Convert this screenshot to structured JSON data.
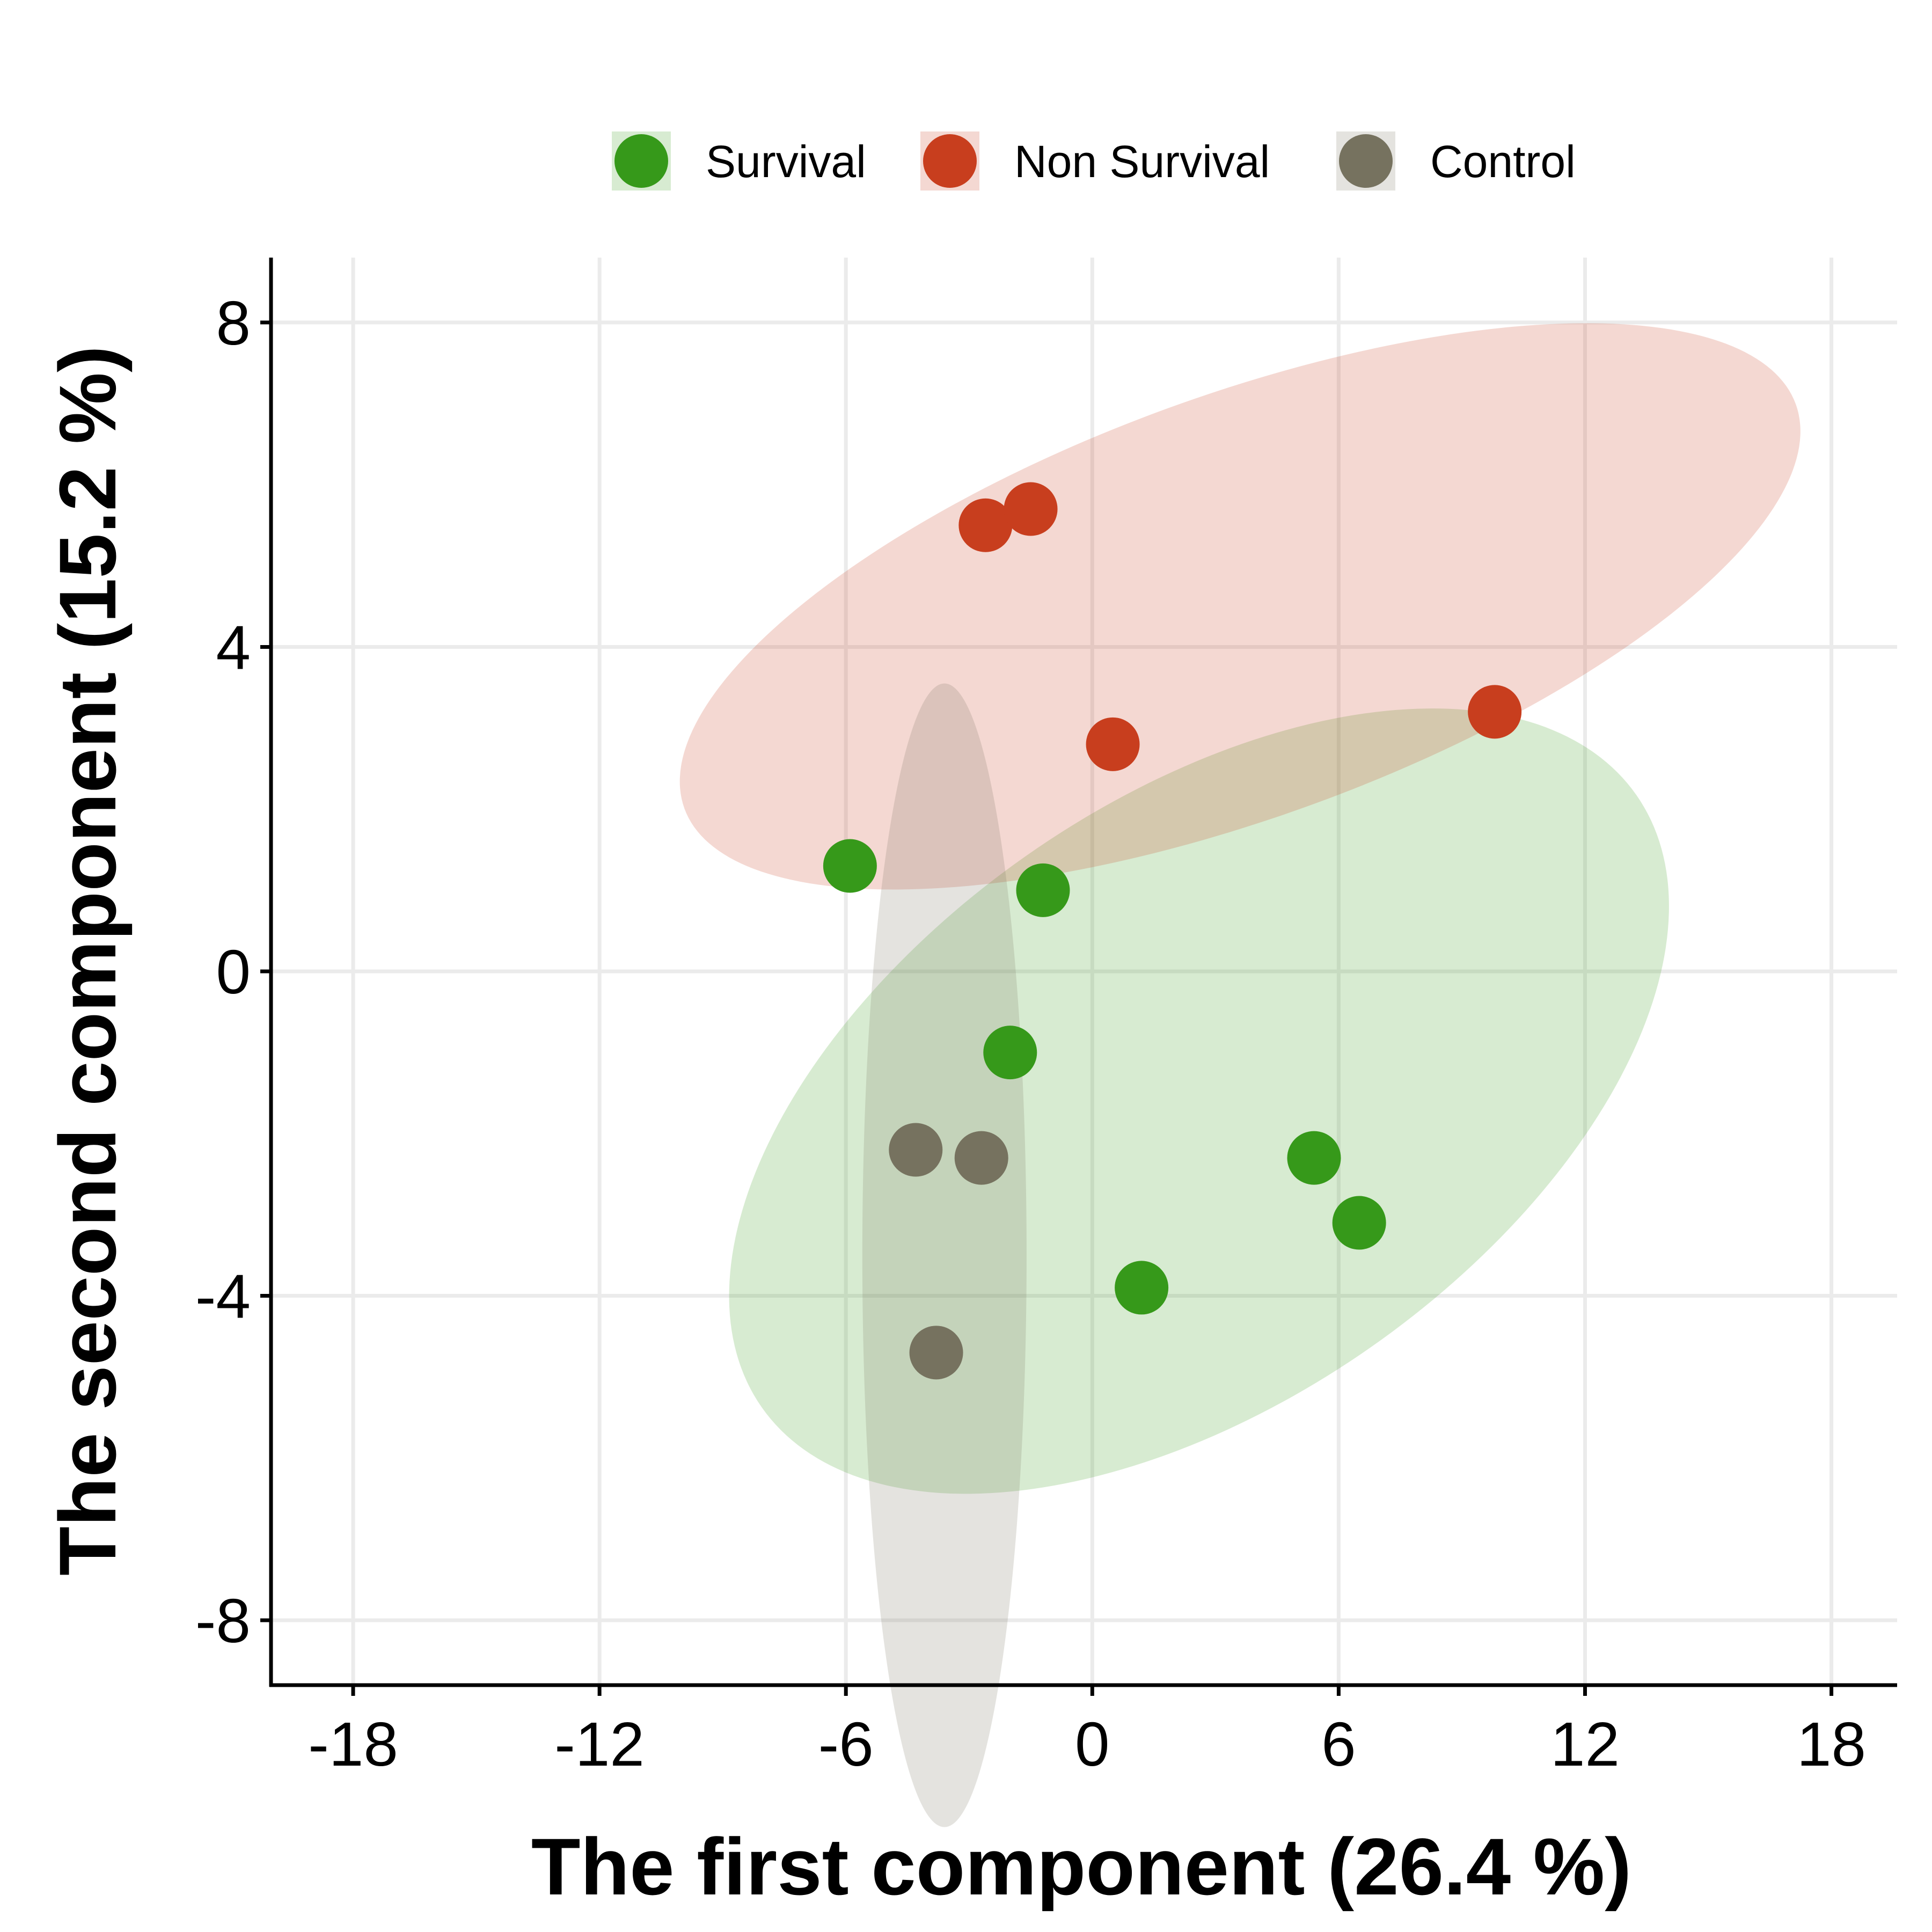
{
  "chart_data": {
    "type": "scatter",
    "title": "",
    "xlabel": "The first component (26.4 %)",
    "ylabel": "The second component (15.2 %)",
    "xlim": [
      -20,
      19.6
    ],
    "ylim": [
      -8.8,
      8.8
    ],
    "x_ticks": [
      -18,
      -12,
      -6,
      0,
      6,
      12,
      18
    ],
    "y_ticks": [
      -8,
      -4,
      0,
      4,
      8
    ],
    "x_tick_labels": [
      "-18",
      "-12",
      "-6",
      "0",
      "6",
      "12",
      "18"
    ],
    "y_tick_labels": [
      "-8",
      "-4",
      "0",
      "4",
      "8"
    ],
    "grid": true,
    "legend_position": "top",
    "series": [
      {
        "name": "Survival",
        "color": "#36991a",
        "points": [
          {
            "x": -5.9,
            "y": 1.3
          },
          {
            "x": -1.2,
            "y": 1.0
          },
          {
            "x": -2.0,
            "y": -1.0
          },
          {
            "x": 5.4,
            "y": -2.3
          },
          {
            "x": 6.5,
            "y": -3.1
          },
          {
            "x": 1.2,
            "y": -3.9
          }
        ],
        "ellipse": {
          "cx": 2.6,
          "cy": -1.6,
          "rx": 13.0,
          "ry": 3.7,
          "angle_deg": -35
        }
      },
      {
        "name": "Non Survival",
        "color": "#c83e1e",
        "points": [
          {
            "x": -2.6,
            "y": 5.5
          },
          {
            "x": -1.5,
            "y": 5.7
          },
          {
            "x": 0.5,
            "y": 2.8
          },
          {
            "x": 9.8,
            "y": 3.2
          }
        ],
        "ellipse": {
          "cx": 3.6,
          "cy": 4.5,
          "rx": 14.4,
          "ry": 2.6,
          "angle_deg": -20
        }
      },
      {
        "name": "Control",
        "color": "#76725f",
        "points": [
          {
            "x": -4.3,
            "y": -2.2
          },
          {
            "x": -2.7,
            "y": -2.3
          },
          {
            "x": -3.8,
            "y": -4.7
          }
        ],
        "ellipse": {
          "cx": -3.6,
          "cy": -3.5,
          "rx": 2.0,
          "ry": 7.05,
          "angle_deg": 0
        }
      }
    ]
  }
}
